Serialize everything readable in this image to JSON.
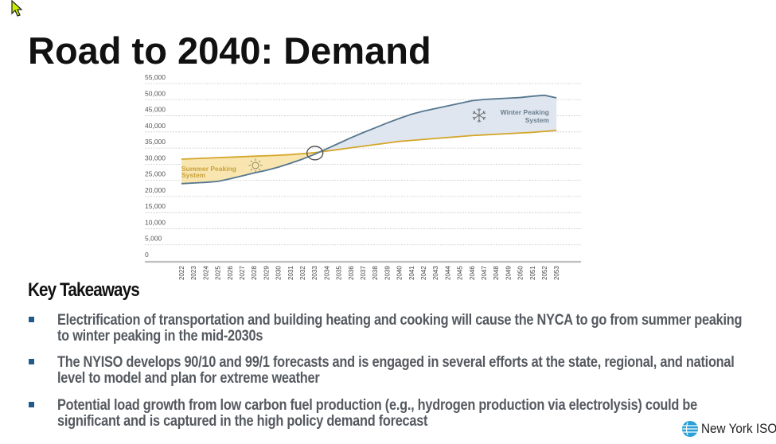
{
  "slide": {
    "title": "Road to 2040:  Demand",
    "takeaways_heading": "Key Takeaways",
    "bullets": [
      {
        "line1": "Electrification of transportation and building heating and cooking will cause the NYCA to go from summer peaking",
        "line2": "to winter peaking in the mid-2030s"
      },
      {
        "line1": "The NYISO develops 90/10 and 99/1 forecasts and is engaged in several efforts at the state, regional, and national",
        "line2": "level to model and plan for extreme weather"
      },
      {
        "line1": "Potential load growth from low carbon fuel production (e.g., hydrogen production via electrolysis) could be",
        "line2": "significant and is captured in the high policy demand forecast"
      }
    ],
    "logo_text": "New York ISO",
    "colors": {
      "bullet": "#1f5a8a",
      "summer_line": "#d4a62a",
      "summer_fill": "#f7e2a6",
      "winter_line": "#56778f",
      "winter_fill": "#dde5ee",
      "summer_label": "#c9a23a",
      "winter_label": "#6c7f90"
    }
  },
  "chart_data": {
    "type": "area",
    "title": "",
    "xlabel": "",
    "ylabel": "",
    "ylim": [
      0,
      55000
    ],
    "yticks": [
      "0",
      "5,000",
      "10,000",
      "15,000",
      "20,000",
      "25,000",
      "30,000",
      "35,000",
      "40,000",
      "45,000",
      "50,000",
      "55,000"
    ],
    "ytick_values": [
      0,
      5000,
      10000,
      15000,
      20000,
      25000,
      30000,
      35000,
      40000,
      45000,
      50000,
      55000
    ],
    "grid": true,
    "categories": [
      "2022",
      "2023",
      "2024",
      "2025",
      "2026",
      "2027",
      "2028",
      "2029",
      "2030",
      "2031",
      "2032",
      "2033",
      "2034",
      "2035",
      "2036",
      "2037",
      "2038",
      "2039",
      "2040",
      "2041",
      "2042",
      "2043",
      "2044",
      "2045",
      "2046",
      "2047",
      "2048",
      "2049",
      "2050",
      "2051",
      "2052",
      "2053"
    ],
    "series": [
      {
        "name": "Summer Peak",
        "values": [
          29600,
          29750,
          29900,
          30050,
          30200,
          30350,
          30500,
          30650,
          30800,
          31000,
          31300,
          31600,
          32100,
          32600,
          33100,
          33600,
          34100,
          34600,
          35100,
          35400,
          35700,
          36000,
          36300,
          36600,
          36900,
          37100,
          37300,
          37500,
          37700,
          37900,
          38200,
          38500
        ]
      },
      {
        "name": "Winter Peak",
        "values": [
          22000,
          22200,
          22400,
          22700,
          23500,
          24400,
          25300,
          26100,
          27100,
          28300,
          29600,
          31100,
          32800,
          34500,
          36200,
          37800,
          39300,
          40800,
          42200,
          43500,
          44500,
          45300,
          46100,
          46900,
          47700,
          48100,
          48300,
          48500,
          48700,
          49100,
          49400,
          48600
        ]
      }
    ],
    "annotations": [
      {
        "text": "Summer Peaking System",
        "region": "2022-2032 between lines",
        "icon": "sun"
      },
      {
        "text": "Winter Peaking System",
        "region": "2045-2053 between lines",
        "icon": "snowflake"
      },
      {
        "text": "crossover-circle",
        "at": "2033"
      }
    ],
    "labels": {
      "summer_l1": "Summer Peaking",
      "summer_l2": "System",
      "winter_l1": "Winter Peaking",
      "winter_l2": "System"
    }
  }
}
